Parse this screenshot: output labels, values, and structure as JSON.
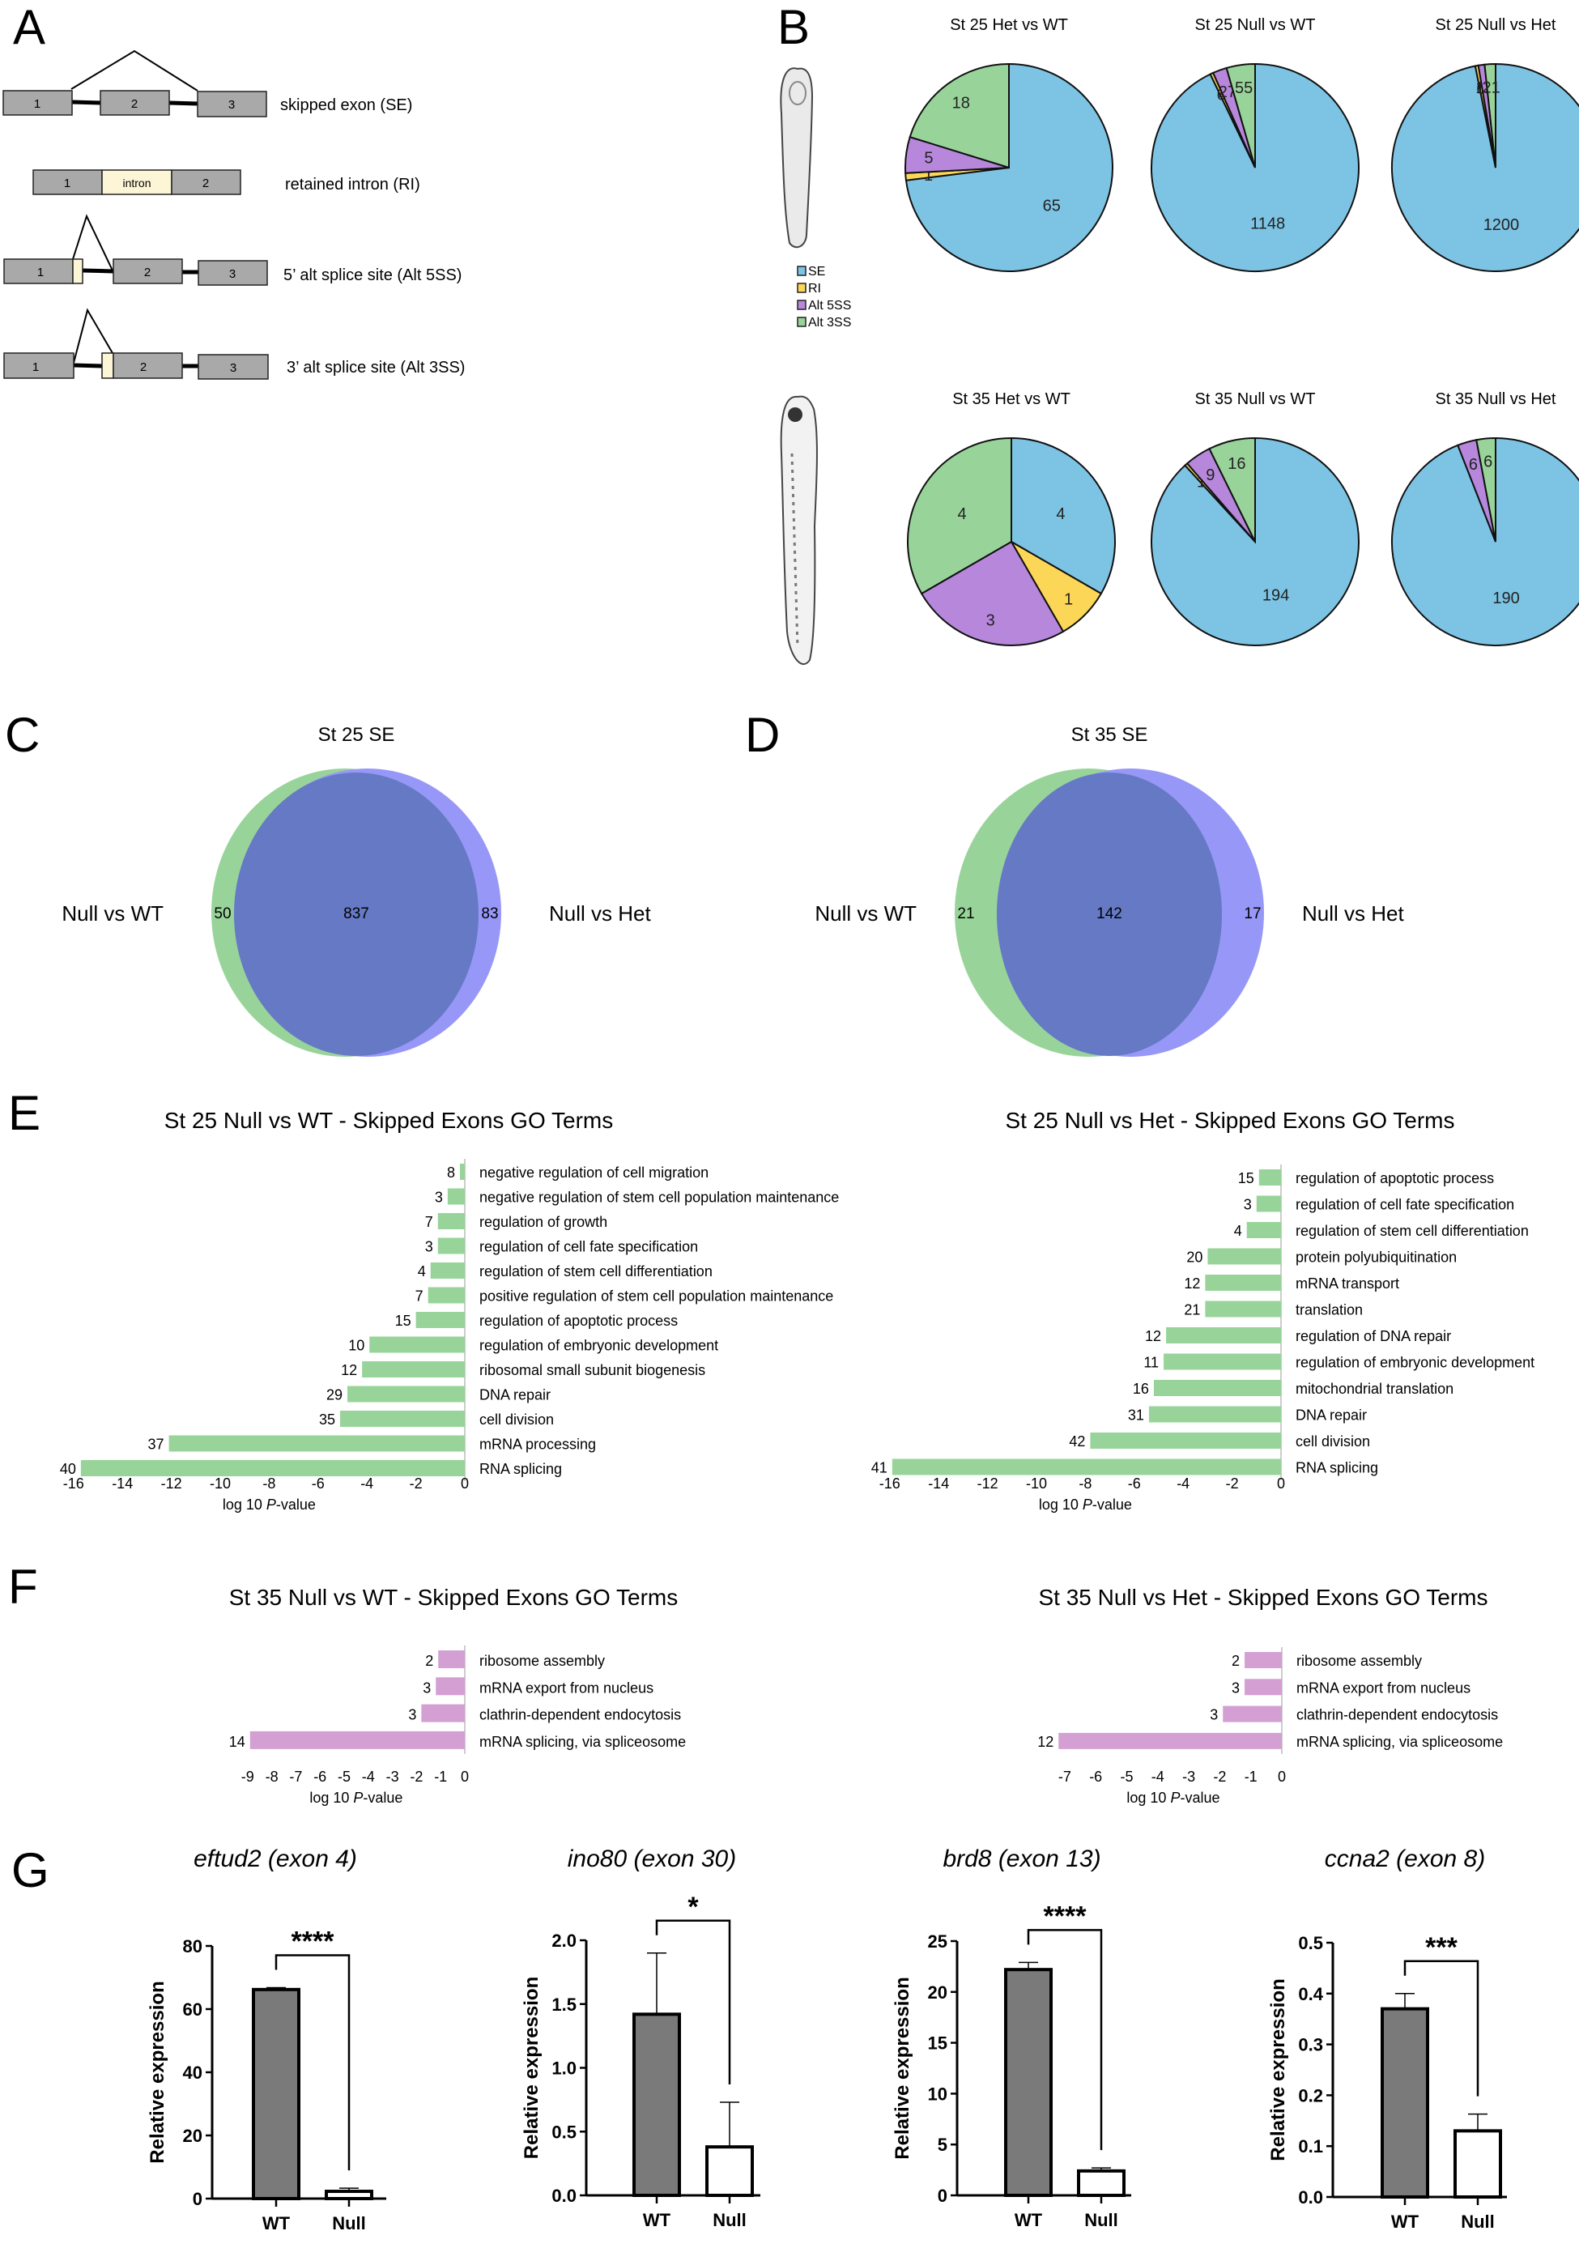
{
  "panel_letters": [
    "A",
    "B",
    "C",
    "D",
    "E",
    "F",
    "G"
  ],
  "panel_a": {
    "events": [
      {
        "label": "skipped exon (SE)",
        "exons": [
          "1",
          "2",
          "3"
        ]
      },
      {
        "label": "retained intron (RI)",
        "exons": [
          "1",
          "intron",
          "2"
        ]
      },
      {
        "label": "5’ alt splice site (Alt 5SS)",
        "exons": [
          "1",
          "2",
          "3"
        ]
      },
      {
        "label": "3’ alt splice site (Alt 3SS)",
        "exons": [
          "1",
          "2",
          "3"
        ]
      }
    ],
    "colors": {
      "exon": "#a9a9a9",
      "intron": "#fdf6d6"
    }
  },
  "legend": {
    "items": [
      {
        "label": "SE",
        "color": "#7dc4e4"
      },
      {
        "label": "RI",
        "color": "#fcd757"
      },
      {
        "label": "Alt 5SS",
        "color": "#b787dc"
      },
      {
        "label": "Alt 3SS",
        "color": "#98d49a"
      }
    ]
  },
  "chart_data": [
    {
      "type": "pie",
      "panel": "B",
      "title": "St 25 Het vs WT",
      "categories": [
        "SE",
        "RI",
        "Alt 5SS",
        "Alt 3SS"
      ],
      "values": [
        65,
        1,
        5,
        18
      ],
      "labels": [
        "65",
        "1",
        "5",
        "18"
      ]
    },
    {
      "type": "pie",
      "panel": "B",
      "title": "St 25 Null vs WT",
      "categories": [
        "SE",
        "RI",
        "Alt 5SS",
        "Alt 3SS"
      ],
      "values": [
        1148,
        6,
        27,
        55
      ],
      "labels": [
        "1148",
        "6",
        "27",
        "55"
      ]
    },
    {
      "type": "pie",
      "panel": "B",
      "title": "St 25 Null vs Het",
      "categories": [
        "SE",
        "RI",
        "Alt 5SS",
        "Alt 3SS"
      ],
      "values": [
        1200,
        6,
        12,
        21
      ],
      "labels": [
        "1200",
        "6",
        "12",
        "21"
      ]
    },
    {
      "type": "pie",
      "panel": "B",
      "title": "St 35 Het vs WT",
      "categories": [
        "SE",
        "RI",
        "Alt 5SS",
        "Alt 3SS"
      ],
      "values": [
        4,
        1,
        3,
        4
      ],
      "labels": [
        "4",
        "1",
        "3",
        "4"
      ]
    },
    {
      "type": "pie",
      "panel": "B",
      "title": "St 35 Null vs WT",
      "categories": [
        "SE",
        "RI",
        "Alt 5SS",
        "Alt 3SS"
      ],
      "values": [
        194,
        1,
        9,
        16
      ],
      "labels": [
        "194",
        "1",
        "9",
        "16"
      ]
    },
    {
      "type": "pie",
      "panel": "B",
      "title": "St 35 Null vs Het",
      "categories": [
        "SE",
        "RI",
        "Alt 5SS",
        "Alt 3SS"
      ],
      "values": [
        190,
        0,
        6,
        6
      ],
      "labels": [
        "190",
        "",
        "6",
        "6"
      ]
    },
    {
      "type": "venn",
      "panel": "C",
      "title": "St 25 SE",
      "sets": [
        "Null vs WT",
        "Null vs Het"
      ],
      "only_a": 50,
      "both": 837,
      "only_b": 83,
      "colors": {
        "a": "#98d49a",
        "b": "#9797f8",
        "overlap": "#6679c4"
      }
    },
    {
      "type": "venn",
      "panel": "D",
      "title": "St 35 SE",
      "sets": [
        "Null vs WT",
        "Null vs Het"
      ],
      "only_a": 21,
      "both": 142,
      "only_b": 17,
      "colors": {
        "a": "#98d49a",
        "b": "#9797f8",
        "overlap": "#6679c4"
      }
    },
    {
      "type": "bar",
      "orientation": "horizontal",
      "panel": "E",
      "title": "St 25 Null vs WT - Skipped Exons GO Terms",
      "xlabel": "log 10 P-value",
      "xlim": [
        -16,
        0
      ],
      "xticks": [
        -16,
        -14,
        -12,
        -10,
        -8,
        -6,
        -4,
        -2,
        0
      ],
      "color": "#98d49a",
      "categories": [
        "negative regulation of cell migration",
        "negative regulation of stem cell population maintenance",
        "regulation of growth",
        "regulation of cell fate specification",
        "regulation of stem cell differentiation",
        "positive regulation of stem cell population maintenance",
        "regulation of apoptotic process",
        "regulation of embryonic development",
        "ribosomal small subunit biogenesis",
        "DNA repair",
        "cell division",
        "mRNA processing",
        "RNA splicing"
      ],
      "values": [
        -0.2,
        -0.7,
        -1.1,
        -1.1,
        -1.4,
        -1.5,
        -2.0,
        -3.9,
        -4.2,
        -4.8,
        -5.1,
        -12.1,
        -15.7
      ],
      "counts": [
        "8",
        "3",
        "7",
        "3",
        "4",
        "7",
        "15",
        "10",
        "12",
        "29",
        "35",
        "37",
        "40"
      ]
    },
    {
      "type": "bar",
      "orientation": "horizontal",
      "panel": "E",
      "title": "St 25 Null vs Het - Skipped Exons GO Terms",
      "xlabel": "log 10 P-value",
      "xlim": [
        -16,
        0
      ],
      "xticks": [
        -16,
        -14,
        -12,
        -10,
        -8,
        -6,
        -4,
        -2,
        0
      ],
      "color": "#98d49a",
      "categories": [
        "regulation of apoptotic process",
        "regulation of cell fate specification",
        "regulation of stem cell differentiation",
        "protein polyubiquitination",
        "mRNA transport",
        "translation",
        "regulation of DNA repair",
        "regulation of embryonic development",
        "mitochondrial translation",
        "DNA repair",
        "cell division",
        "RNA splicing"
      ],
      "values": [
        -0.9,
        -1.0,
        -1.4,
        -3.0,
        -3.1,
        -3.1,
        -4.7,
        -4.8,
        -5.2,
        -5.4,
        -7.8,
        -15.9
      ],
      "counts": [
        "15",
        "3",
        "4",
        "20",
        "12",
        "21",
        "12",
        "11",
        "16",
        "31",
        "42",
        "41"
      ]
    },
    {
      "type": "bar",
      "orientation": "horizontal",
      "panel": "F",
      "title": "St 35 Null vs WT - Skipped Exons GO Terms",
      "xlabel": "log 10 P-value",
      "xlim": [
        -9,
        0
      ],
      "xticks": [
        -9,
        -8,
        -7,
        -6,
        -5,
        -4,
        -3,
        -2,
        -1,
        0
      ],
      "color": "#d4a0d4",
      "categories": [
        "ribosome assembly",
        "mRNA export from nucleus",
        "clathrin-dependent endocytosis",
        "mRNA splicing, via spliceosome"
      ],
      "values": [
        -1.1,
        -1.2,
        -1.8,
        -8.9
      ],
      "counts": [
        "2",
        "3",
        "3",
        "14"
      ]
    },
    {
      "type": "bar",
      "orientation": "horizontal",
      "panel": "F",
      "title": "St 35 Null vs Het - Skipped Exons GO Terms",
      "xlabel": "log 10 P-value",
      "xlim": [
        -7,
        0
      ],
      "xticks": [
        -7,
        -6,
        -5,
        -4,
        -3,
        -2,
        -1,
        0
      ],
      "color": "#d4a0d4",
      "categories": [
        "ribosome assembly",
        "mRNA export from nucleus",
        "clathrin-dependent endocytosis",
        "mRNA splicing, via spliceosome"
      ],
      "values": [
        -1.2,
        -1.2,
        -1.9,
        -7.2
      ],
      "counts": [
        "2",
        "3",
        "3",
        "12"
      ]
    },
    {
      "type": "bar",
      "panel": "G",
      "title": "eftud2 (exon 4)",
      "ylabel": "Relative expression",
      "ylim": [
        0,
        80
      ],
      "yticks": [
        "0",
        "20",
        "40",
        "60",
        "80"
      ],
      "categories": [
        "WT",
        "Null"
      ],
      "values": [
        66.2,
        2.3
      ],
      "errors": [
        0.6,
        1.0
      ],
      "significance": "****",
      "colors": [
        "#7a7a7a",
        "#ffffff"
      ]
    },
    {
      "type": "bar",
      "panel": "G",
      "title": "ino80 (exon 30)",
      "ylabel": "Relative expression",
      "ylim": [
        0,
        2.0
      ],
      "yticks": [
        "0.0",
        "0.5",
        "1.0",
        "1.5",
        "2.0"
      ],
      "categories": [
        "WT",
        "Null"
      ],
      "values": [
        1.42,
        0.38
      ],
      "errors": [
        0.48,
        0.35
      ],
      "significance": "*",
      "colors": [
        "#7a7a7a",
        "#ffffff"
      ]
    },
    {
      "type": "bar",
      "panel": "G",
      "title": "brd8 (exon 13)",
      "ylabel": "Relative expression",
      "ylim": [
        0,
        25
      ],
      "yticks": [
        "0",
        "5",
        "10",
        "15",
        "20",
        "25"
      ],
      "categories": [
        "WT",
        "Null"
      ],
      "values": [
        22.2,
        2.4
      ],
      "errors": [
        0.7,
        0.3
      ],
      "significance": "****",
      "colors": [
        "#7a7a7a",
        "#ffffff"
      ]
    },
    {
      "type": "bar",
      "panel": "G",
      "title": "ccna2 (exon 8)",
      "ylabel": "Relative expression",
      "ylim": [
        0,
        0.5
      ],
      "yticks": [
        "0.0",
        "0.1",
        "0.2",
        "0.3",
        "0.4",
        "0.5"
      ],
      "categories": [
        "WT",
        "Null"
      ],
      "values": [
        0.37,
        0.13
      ],
      "errors": [
        0.03,
        0.033
      ],
      "significance": "***",
      "colors": [
        "#7a7a7a",
        "#ffffff"
      ]
    }
  ]
}
